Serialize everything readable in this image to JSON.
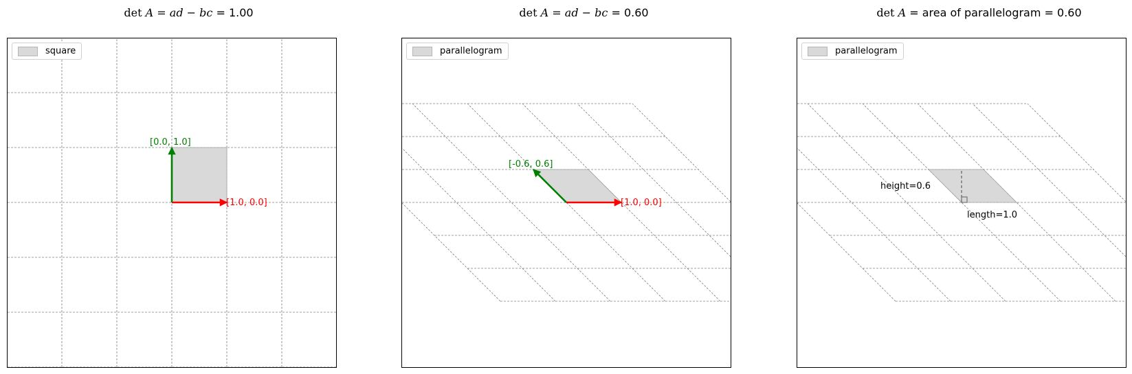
{
  "panels": [
    {
      "title_prefix": "det",
      "title_var": "A",
      "title_mid": "ad − bc",
      "title_suffix": "= 1.00",
      "legend": "square",
      "shear": 0,
      "labels": {
        "e1": "[1.0, 0.0]",
        "e2": "[0.0, 1.0]"
      }
    },
    {
      "title_prefix": "det",
      "title_var": "A",
      "title_mid": "ad − bc",
      "title_suffix": "= 0.60",
      "legend": "parallelogram",
      "shear": -0.6,
      "labels": {
        "e1": "[1.0, 0.0]",
        "e2": "[-0.6, 0.6]"
      }
    },
    {
      "title_prefix": "det",
      "title_var": "A",
      "title_text": "= area of parallelogram = 0.60",
      "legend": "parallelogram",
      "shear": -0.6,
      "labels": {
        "height": "height=0.6",
        "length": "length=1.0"
      }
    }
  ],
  "colors": {
    "e1": "#ff0000",
    "e2": "#008000",
    "fill": "#d9d9d9",
    "grid": "#808080"
  }
}
